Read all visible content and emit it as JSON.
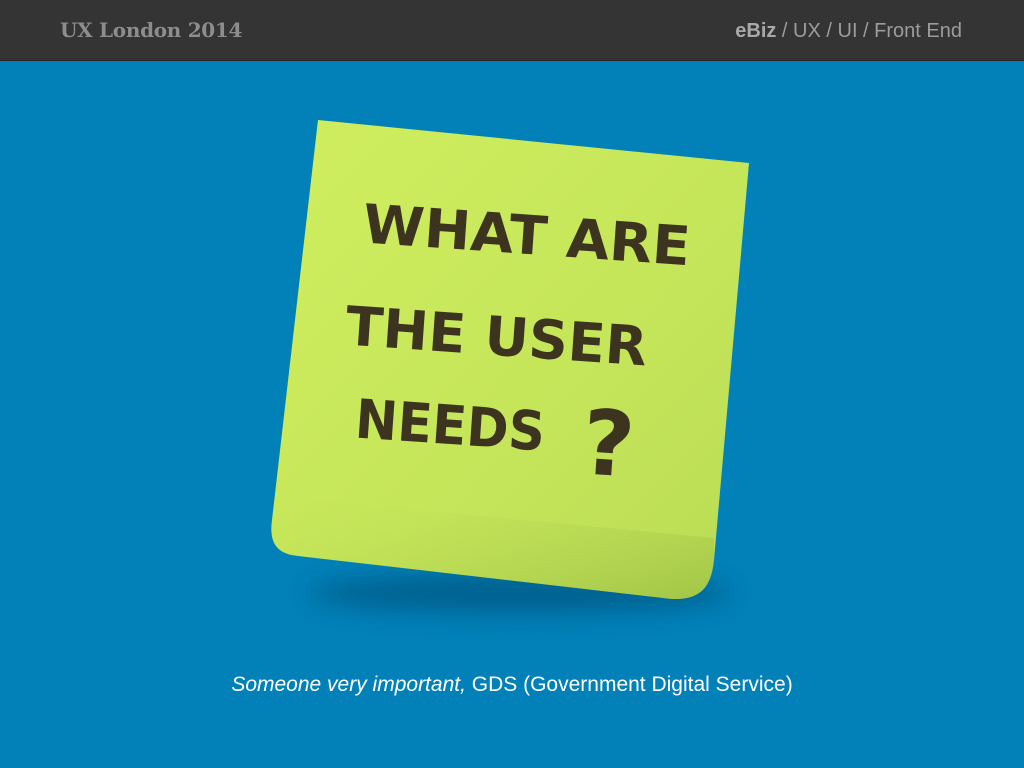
{
  "header": {
    "event_title": "UX London 2014",
    "topic_strong": "eBiz",
    "topic_rest": " / UX / UI / Front End"
  },
  "note": {
    "line1": "WHAT ARE",
    "line2": "THE USER",
    "line3": "NEEDS",
    "mark": "?",
    "color": "#c9e85a"
  },
  "caption": {
    "who": "Someone very important,",
    "source": " GDS (Government Digital Service)"
  },
  "colors": {
    "background": "#0181b8",
    "bar": "#343434"
  }
}
